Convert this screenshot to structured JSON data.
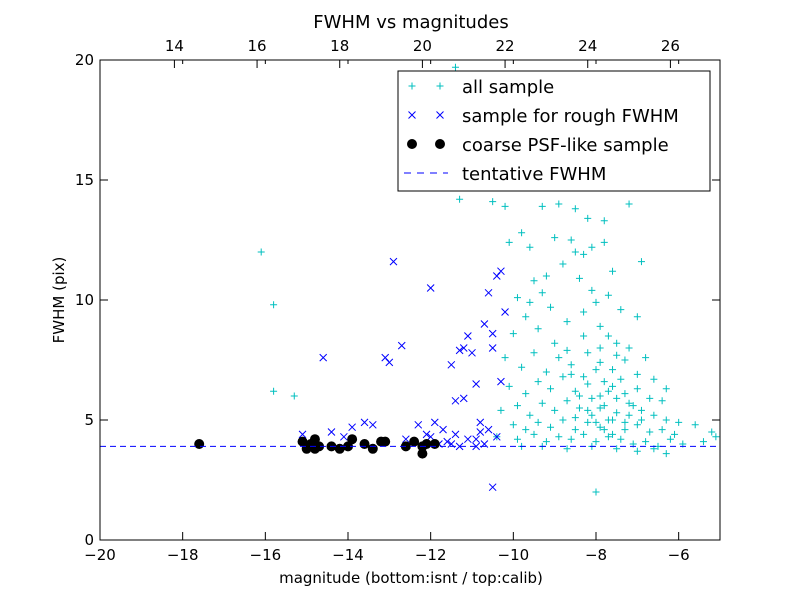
{
  "chart_data": {
    "type": "scatter",
    "title": "FWHM vs magnitudes",
    "xlabel": "magnitude (bottom:isnt / top:calib)",
    "ylabel": "FWHM (pix)",
    "xlim": [
      -20,
      -5
    ],
    "ylim": [
      0,
      20
    ],
    "xticks": [
      -20,
      -18,
      -16,
      -14,
      -12,
      -10,
      -8,
      -6
    ],
    "xtick_labels": [
      "−20",
      "−18",
      "−16",
      "−14",
      "−12",
      "−10",
      "−8",
      "−6"
    ],
    "yticks": [
      0,
      5,
      10,
      15,
      20
    ],
    "ytick_labels": [
      "0",
      "5",
      "10",
      "15",
      "20"
    ],
    "top_axis": {
      "xlim": [
        12.2,
        27.2
      ],
      "ticks": [
        14,
        16,
        18,
        20,
        22,
        24,
        26
      ],
      "tick_labels": [
        "14",
        "16",
        "18",
        "20",
        "22",
        "24",
        "26"
      ]
    },
    "legend_position": "top-right",
    "grid": false,
    "colors": {
      "all_sample": "#00bfbf",
      "rough_sample": "#0000ff",
      "psf_sample": "#000000",
      "tentative": "#0000ff"
    },
    "series": [
      {
        "name": "all sample",
        "marker": "+",
        "points": [
          [
            -16.1,
            12.0
          ],
          [
            -15.8,
            9.8
          ],
          [
            -15.8,
            6.2
          ],
          [
            -15.3,
            6.0
          ],
          [
            -11.4,
            19.7
          ],
          [
            -11.3,
            14.2
          ],
          [
            -10.5,
            14.1
          ],
          [
            -10.2,
            13.9
          ],
          [
            -9.8,
            12.8
          ],
          [
            -9.6,
            12.2
          ],
          [
            -9.3,
            13.9
          ],
          [
            -8.9,
            14.0
          ],
          [
            -8.5,
            13.8
          ],
          [
            -8.2,
            13.4
          ],
          [
            -7.8,
            13.3
          ],
          [
            -7.2,
            14.0
          ],
          [
            -6.9,
            11.6
          ],
          [
            -8.0,
            2.0
          ],
          [
            -10.1,
            12.4
          ],
          [
            -9.0,
            12.6
          ],
          [
            -8.6,
            12.5
          ],
          [
            -8.3,
            11.9
          ],
          [
            -7.6,
            11.2
          ],
          [
            -9.9,
            10.1
          ],
          [
            -9.5,
            10.8
          ],
          [
            -9.2,
            11.0
          ],
          [
            -8.8,
            11.5
          ],
          [
            -8.4,
            10.9
          ],
          [
            -8.1,
            10.4
          ],
          [
            -7.7,
            10.2
          ],
          [
            -7.4,
            9.6
          ],
          [
            -7.0,
            9.3
          ],
          [
            -10.0,
            8.6
          ],
          [
            -9.7,
            9.3
          ],
          [
            -9.4,
            8.8
          ],
          [
            -9.1,
            9.7
          ],
          [
            -8.7,
            9.1
          ],
          [
            -8.3,
            8.5
          ],
          [
            -7.9,
            8.9
          ],
          [
            -7.5,
            8.2
          ],
          [
            -7.2,
            8.0
          ],
          [
            -6.8,
            7.6
          ],
          [
            -10.2,
            7.6
          ],
          [
            -9.8,
            7.2
          ],
          [
            -9.5,
            7.8
          ],
          [
            -9.2,
            7.0
          ],
          [
            -8.9,
            7.6
          ],
          [
            -8.6,
            7.3
          ],
          [
            -8.2,
            7.8
          ],
          [
            -7.9,
            7.4
          ],
          [
            -7.6,
            7.1
          ],
          [
            -7.3,
            7.5
          ],
          [
            -7.0,
            6.9
          ],
          [
            -6.6,
            6.7
          ],
          [
            -6.3,
            6.3
          ],
          [
            -10.1,
            6.4
          ],
          [
            -9.7,
            6.1
          ],
          [
            -9.4,
            6.6
          ],
          [
            -9.1,
            6.3
          ],
          [
            -8.8,
            6.8
          ],
          [
            -8.5,
            6.2
          ],
          [
            -8.2,
            6.5
          ],
          [
            -7.9,
            6.0
          ],
          [
            -7.6,
            6.4
          ],
          [
            -7.3,
            6.1
          ],
          [
            -7.0,
            6.3
          ],
          [
            -6.7,
            5.9
          ],
          [
            -6.4,
            5.8
          ],
          [
            -10.3,
            5.4
          ],
          [
            -9.9,
            5.6
          ],
          [
            -9.6,
            5.2
          ],
          [
            -9.3,
            5.7
          ],
          [
            -9.0,
            5.4
          ],
          [
            -8.7,
            5.8
          ],
          [
            -8.4,
            5.5
          ],
          [
            -8.1,
            5.9
          ],
          [
            -7.8,
            5.6
          ],
          [
            -7.5,
            5.3
          ],
          [
            -7.2,
            5.7
          ],
          [
            -6.9,
            5.4
          ],
          [
            -6.6,
            5.2
          ],
          [
            -6.3,
            5.0
          ],
          [
            -6.0,
            4.9
          ],
          [
            -5.6,
            4.8
          ],
          [
            -5.2,
            4.5
          ],
          [
            -10.0,
            4.8
          ],
          [
            -9.7,
            4.6
          ],
          [
            -9.4,
            4.9
          ],
          [
            -9.1,
            4.7
          ],
          [
            -8.8,
            5.0
          ],
          [
            -8.5,
            4.6
          ],
          [
            -8.2,
            4.9
          ],
          [
            -7.9,
            4.7
          ],
          [
            -7.6,
            5.0
          ],
          [
            -7.3,
            4.6
          ],
          [
            -7.0,
            4.8
          ],
          [
            -6.7,
            4.5
          ],
          [
            -6.4,
            4.6
          ],
          [
            -6.1,
            4.4
          ],
          [
            -10.4,
            4.3
          ],
          [
            -9.9,
            4.2
          ],
          [
            -9.5,
            4.4
          ],
          [
            -9.2,
            4.1
          ],
          [
            -8.9,
            4.3
          ],
          [
            -8.6,
            4.2
          ],
          [
            -8.3,
            4.4
          ],
          [
            -8.0,
            4.1
          ],
          [
            -7.7,
            4.3
          ],
          [
            -7.4,
            4.2
          ],
          [
            -7.1,
            4.0
          ],
          [
            -6.8,
            4.1
          ],
          [
            -6.5,
            3.9
          ],
          [
            -6.2,
            4.2
          ],
          [
            -5.9,
            4.0
          ],
          [
            -5.4,
            4.1
          ],
          [
            -5.1,
            4.3
          ],
          [
            -9.8,
            3.9
          ],
          [
            -9.3,
            3.9
          ],
          [
            -8.7,
            3.8
          ],
          [
            -8.1,
            3.9
          ],
          [
            -7.5,
            3.8
          ],
          [
            -7.0,
            3.7
          ],
          [
            -6.6,
            3.8
          ],
          [
            -6.3,
            3.6
          ],
          [
            -8.3,
            6.8
          ],
          [
            -8.0,
            7.1
          ],
          [
            -7.8,
            6.6
          ],
          [
            -7.7,
            6.2
          ],
          [
            -7.9,
            5.5
          ],
          [
            -8.1,
            5.2
          ],
          [
            -7.7,
            5.0
          ],
          [
            -7.5,
            5.9
          ],
          [
            -7.4,
            6.7
          ],
          [
            -8.4,
            6.0
          ],
          [
            -8.2,
            5.4
          ],
          [
            -7.8,
            4.6
          ],
          [
            -7.6,
            4.4
          ],
          [
            -8.0,
            4.9
          ],
          [
            -7.2,
            5.2
          ],
          [
            -7.1,
            5.6
          ],
          [
            -8.6,
            6.9
          ],
          [
            -8.5,
            5.1
          ],
          [
            -7.3,
            4.9
          ],
          [
            -6.9,
            5.0
          ],
          [
            -7.9,
            8.0
          ],
          [
            -8.3,
            9.5
          ],
          [
            -8.0,
            9.9
          ],
          [
            -7.7,
            8.5
          ],
          [
            -7.5,
            7.7
          ],
          [
            -8.7,
            7.9
          ],
          [
            -9.0,
            8.2
          ],
          [
            -9.3,
            10.3
          ],
          [
            -9.6,
            9.9
          ],
          [
            -8.5,
            12.0
          ],
          [
            -8.1,
            12.2
          ],
          [
            -7.8,
            12.4
          ]
        ]
      },
      {
        "name": "sample for rough FWHM",
        "marker": "x",
        "points": [
          [
            -15.1,
            4.4
          ],
          [
            -14.8,
            4.1
          ],
          [
            -14.6,
            7.6
          ],
          [
            -14.4,
            4.5
          ],
          [
            -14.1,
            4.3
          ],
          [
            -13.9,
            4.7
          ],
          [
            -13.6,
            4.9
          ],
          [
            -13.4,
            4.8
          ],
          [
            -13.1,
            7.6
          ],
          [
            -13.0,
            7.4
          ],
          [
            -12.9,
            11.6
          ],
          [
            -12.7,
            8.1
          ],
          [
            -12.6,
            4.2
          ],
          [
            -12.3,
            4.8
          ],
          [
            -12.1,
            4.4
          ],
          [
            -12.0,
            10.5
          ],
          [
            -11.9,
            4.9
          ],
          [
            -11.7,
            4.6
          ],
          [
            -11.5,
            7.3
          ],
          [
            -11.4,
            5.8
          ],
          [
            -11.3,
            7.9
          ],
          [
            -11.2,
            8.0
          ],
          [
            -11.1,
            8.5
          ],
          [
            -11.0,
            7.8
          ],
          [
            -10.9,
            6.5
          ],
          [
            -10.8,
            4.9
          ],
          [
            -10.7,
            9.0
          ],
          [
            -10.6,
            10.3
          ],
          [
            -10.5,
            8.6
          ],
          [
            -10.5,
            8.0
          ],
          [
            -10.4,
            11.0
          ],
          [
            -10.3,
            11.2
          ],
          [
            -10.2,
            9.5
          ],
          [
            -10.3,
            6.6
          ],
          [
            -10.4,
            4.3
          ],
          [
            -10.5,
            2.2
          ],
          [
            -10.8,
            4.5
          ],
          [
            -11.1,
            4.2
          ],
          [
            -11.3,
            3.9
          ],
          [
            -11.6,
            4.1
          ],
          [
            -11.8,
            4.0
          ],
          [
            -12.0,
            4.3
          ],
          [
            -10.7,
            4.0
          ],
          [
            -10.9,
            4.2
          ],
          [
            -11.4,
            4.4
          ],
          [
            -11.2,
            5.9
          ],
          [
            -10.6,
            4.6
          ],
          [
            -10.9,
            3.9
          ],
          [
            -11.5,
            4.0
          ]
        ]
      },
      {
        "name": "coarse PSF-like sample",
        "marker": "o",
        "points": [
          [
            -17.6,
            4.0
          ],
          [
            -15.1,
            4.1
          ],
          [
            -15.0,
            3.8
          ],
          [
            -14.9,
            4.0
          ],
          [
            -14.8,
            4.2
          ],
          [
            -14.8,
            3.8
          ],
          [
            -14.7,
            3.9
          ],
          [
            -14.4,
            3.9
          ],
          [
            -14.2,
            3.8
          ],
          [
            -14.0,
            3.9
          ],
          [
            -13.9,
            4.2
          ],
          [
            -13.6,
            4.0
          ],
          [
            -13.4,
            3.8
          ],
          [
            -13.2,
            4.1
          ],
          [
            -13.1,
            4.1
          ],
          [
            -12.6,
            3.9
          ],
          [
            -12.4,
            4.1
          ],
          [
            -12.2,
            3.9
          ],
          [
            -12.2,
            3.6
          ],
          [
            -12.1,
            4.0
          ],
          [
            -11.9,
            4.0
          ]
        ]
      }
    ],
    "reference_line": {
      "name": "tentative FWHM",
      "y": 3.9,
      "style": "dashed"
    }
  }
}
